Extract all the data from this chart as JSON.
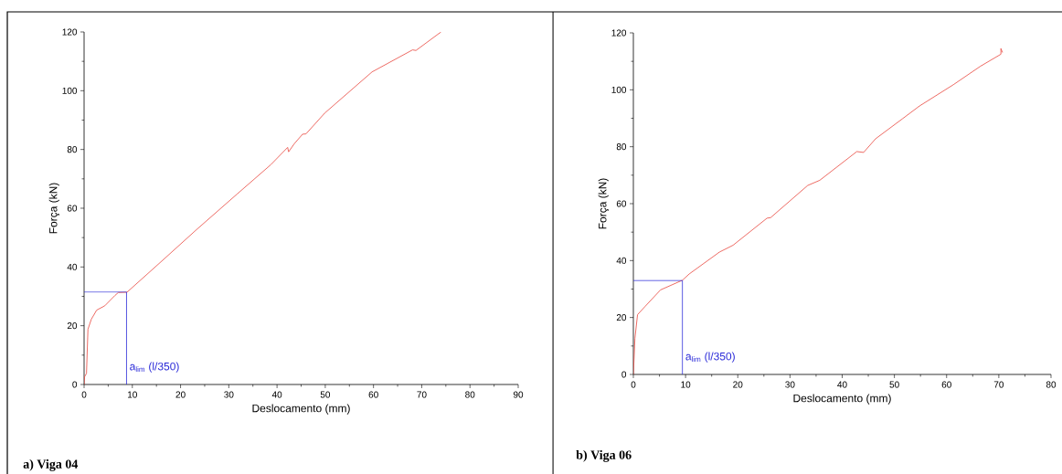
{
  "chart_data": [
    {
      "type": "line",
      "title": "a) Viga 04",
      "xlabel": "Deslocamento (mm)",
      "ylabel": "Força (kN)",
      "xlim": [
        0,
        90
      ],
      "ylim": [
        0,
        120
      ],
      "xticks": [
        0,
        10,
        20,
        30,
        40,
        50,
        60,
        70,
        80,
        90
      ],
      "yticks": [
        0,
        20,
        40,
        60,
        80,
        100,
        120
      ],
      "marker": "none",
      "line_style": "solid",
      "series": [
        {
          "color": "#e8453c",
          "x": [
            0,
            0.1,
            0.5,
            0.8,
            1.5,
            2.6,
            4.3,
            6.4,
            7.1,
            8.9,
            16.3,
            23.3,
            31.7,
            38.7,
            42.2,
            42.4,
            43.6,
            45.3,
            46,
            49.9,
            59.7,
            68.1,
            68.8,
            74
          ],
          "values": [
            0,
            2.6,
            3.8,
            18.8,
            22.2,
            25.3,
            26.8,
            30.3,
            31.3,
            31.4,
            42.3,
            52.7,
            64.8,
            74.8,
            80.7,
            79.2,
            82,
            85.2,
            85.3,
            92.4,
            106.4,
            113.9,
            113.7,
            120
          ]
        },
        {
          "color": "#2a2ad8",
          "x": [
            0,
            8.8,
            8.8
          ],
          "values": [
            31.5,
            31.5,
            0
          ]
        }
      ],
      "annotations": [
        {
          "text": "a$_{lim}$ (l/350)",
          "x": 8.8,
          "y": 0
        }
      ]
    },
    {
      "type": "line",
      "title": "b) Viga 06",
      "xlabel": "Deslocamento (mm)",
      "ylabel": "Força (kN)",
      "xlim": [
        0,
        80
      ],
      "ylim": [
        0,
        120
      ],
      "xticks": [
        0,
        10,
        20,
        30,
        40,
        50,
        60,
        70,
        80
      ],
      "yticks": [
        0,
        20,
        40,
        60,
        80,
        100,
        120
      ],
      "marker": "none",
      "line_style": "solid",
      "series": [
        {
          "color": "#e8453c",
          "x": [
            0,
            0.3,
            0.8,
            2.3,
            5.2,
            9.4,
            10.7,
            16.5,
            19.1,
            25.6,
            26.3,
            33.4,
            35.7,
            42.8,
            44.1,
            46.4,
            51.6,
            54.8,
            61.3,
            66.5,
            70.4,
            70.4,
            70.7
          ],
          "values": [
            0,
            12.7,
            21,
            24,
            29.7,
            33.1,
            35.3,
            43,
            45.4,
            54.9,
            55.1,
            66.4,
            68.2,
            78.3,
            78,
            82.8,
            89.9,
            94.3,
            101.8,
            108.3,
            112.5,
            114.5,
            113.1
          ]
        },
        {
          "color": "#2a2ad8",
          "x": [
            0,
            9.4,
            9.4
          ],
          "values": [
            33,
            33,
            0
          ]
        }
      ],
      "annotations": [
        {
          "text": "a$_{lim}$ (l/350)",
          "x": 9.4,
          "y": 0
        }
      ]
    }
  ]
}
